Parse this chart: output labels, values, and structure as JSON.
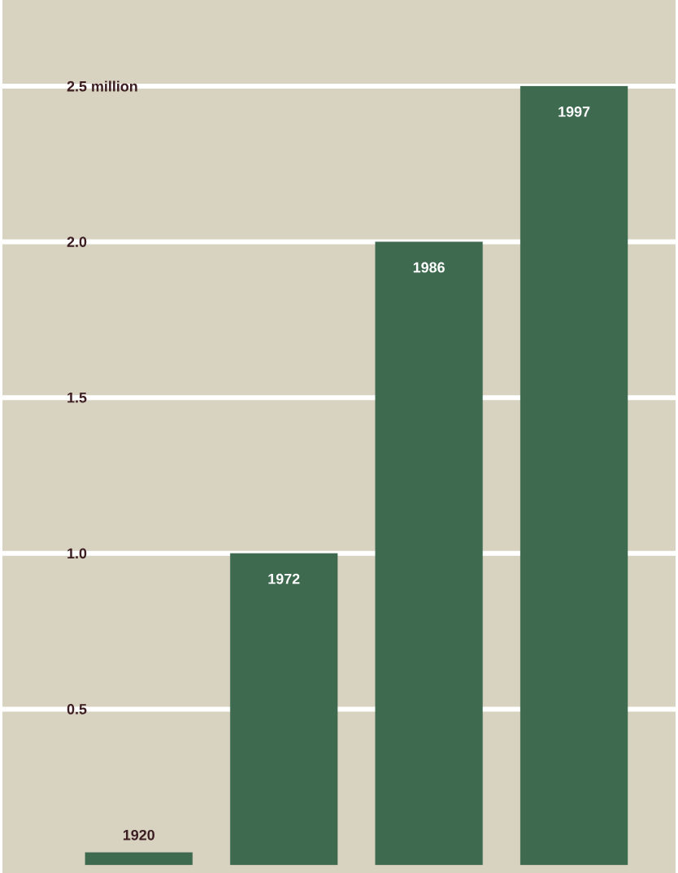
{
  "chart_data": {
    "type": "bar",
    "categories": [
      "1920",
      "1972",
      "1986",
      "1997"
    ],
    "values": [
      0.04,
      1.0,
      2.0,
      2.5
    ],
    "color": "#3e6a50",
    "ylim": [
      0,
      2.5
    ],
    "yticks": [
      {
        "value": 0.5,
        "label": "0.5"
      },
      {
        "value": 1.0,
        "label": "1.0"
      },
      {
        "value": 1.5,
        "label": "1.5"
      },
      {
        "value": 2.0,
        "label": "2.0"
      },
      {
        "value": 2.5,
        "label": "2.5 million"
      }
    ],
    "grid": "y"
  }
}
